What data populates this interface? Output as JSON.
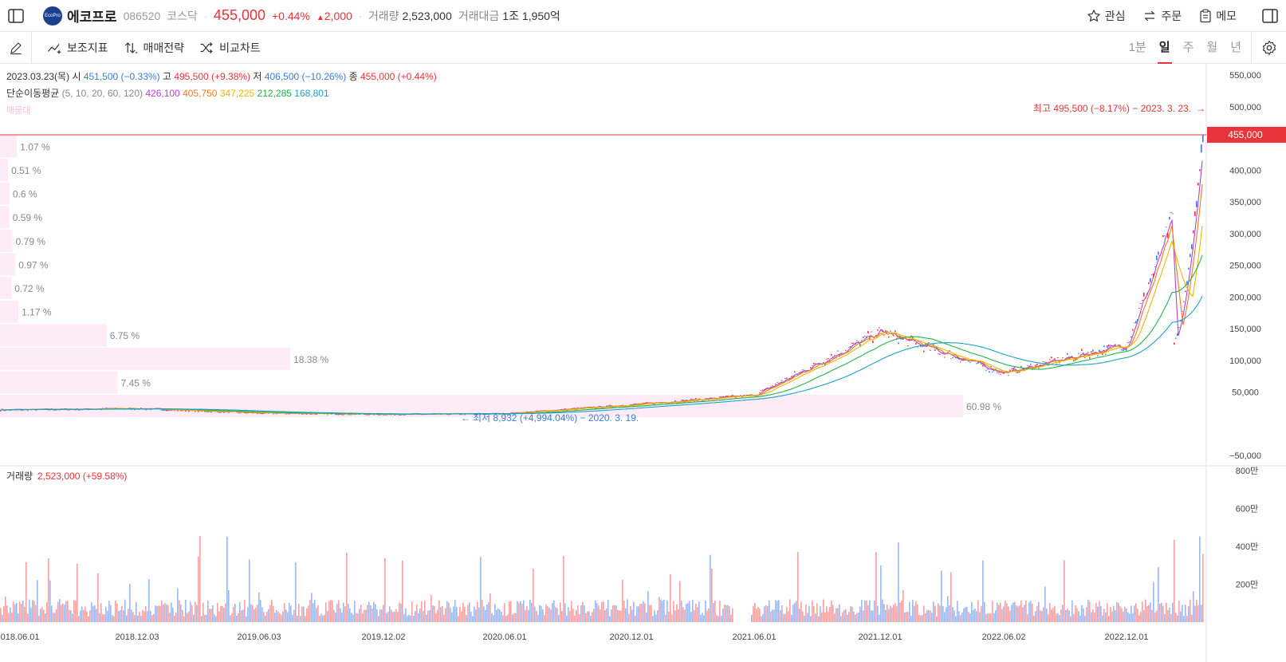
{
  "header": {
    "logo_text": "EcoPro",
    "stock_name": "에코프로",
    "stock_code": "086520",
    "market": "코스닥",
    "price": "455,000",
    "change_pct": "+0.44%",
    "change_amt": "2,000",
    "volume_label": "거래량",
    "volume_value": "2,523,000",
    "amount_label": "거래대금",
    "amount_value": "1조 1,950억",
    "watch_label": "관심",
    "order_label": "주문",
    "memo_label": "메모"
  },
  "toolbar": {
    "indicators_label": "보조지표",
    "strategy_label": "매매전략",
    "compare_label": "비교차트",
    "periods": [
      "1분",
      "일",
      "주",
      "월",
      "년"
    ],
    "active_period": "일"
  },
  "ohlc": {
    "date": "2023.03.23(목)",
    "open_label": "시",
    "open": "451,500 (−0.33%)",
    "high_label": "고",
    "high": "495,500 (+9.38%)",
    "low_label": "저",
    "low": "406,500 (−10.26%)",
    "close_label": "종",
    "close": "455,000 (+0.44%)"
  },
  "ma": {
    "label": "단순이동평균",
    "periods": "(5, 10, 20, 60, 120)",
    "values": [
      "426,100",
      "405,750",
      "347,225",
      "212,285",
      "168,801"
    ],
    "colors": [
      "#b53fd6",
      "#f07b18",
      "#e8b800",
      "#22b24c",
      "#1aa3c7"
    ]
  },
  "faint_label": "매물대",
  "annotations": {
    "high": "최고 495,500 (−8.17%) − 2023. 3. 23.",
    "low": "최저 8,932 (+4,994.04%) − 2020. 3. 19.",
    "current_price_tag": "455,000"
  },
  "volume_panel": {
    "label": "거래량",
    "value": "2,523,000 (+59.58%)"
  },
  "chart_data": [
    {
      "type": "line",
      "title": "",
      "x": [
        "2018.06.01",
        "2018.12.03",
        "2019.06.03",
        "2019.12.02",
        "2020.06.01",
        "2020.12.01",
        "2021.06.01",
        "2021.12.01",
        "2022.06.02",
        "2022.12.01",
        "2023.03.23"
      ],
      "series": [
        {
          "name": "",
          "values": [
            22000,
            24000,
            17000,
            15000,
            16000,
            30000,
            45000,
            145000,
            80000,
            125000,
            455000
          ]
        }
      ],
      "y_ticks": [
        "550,000",
        "500,000",
        "455,000",
        "400,000",
        "350,000",
        "300,000",
        "250,000",
        "200,000",
        "150,000",
        "100,000",
        "50,000",
        "−50,000"
      ],
      "ylim": [
        -50000,
        550000
      ],
      "grid": false
    },
    {
      "type": "bar",
      "title": "",
      "categories": [
        "60.98 %",
        "7.45 %",
        "18.38 %",
        "6.75 %",
        "1.17 %",
        "0.72 %",
        "0.97 %",
        "0.79 %",
        "0.59 %",
        "0.6 %",
        "0.51 %",
        "1.07 %"
      ],
      "values": [
        60.98,
        7.45,
        18.38,
        6.75,
        1.17,
        0.72,
        0.97,
        0.79,
        0.59,
        0.6,
        0.51,
        1.07
      ]
    },
    {
      "type": "bar",
      "title": "",
      "y_ticks": [
        "800만",
        "600만",
        "400만",
        "200만"
      ],
      "ylim": [
        0,
        8000000
      ]
    }
  ]
}
